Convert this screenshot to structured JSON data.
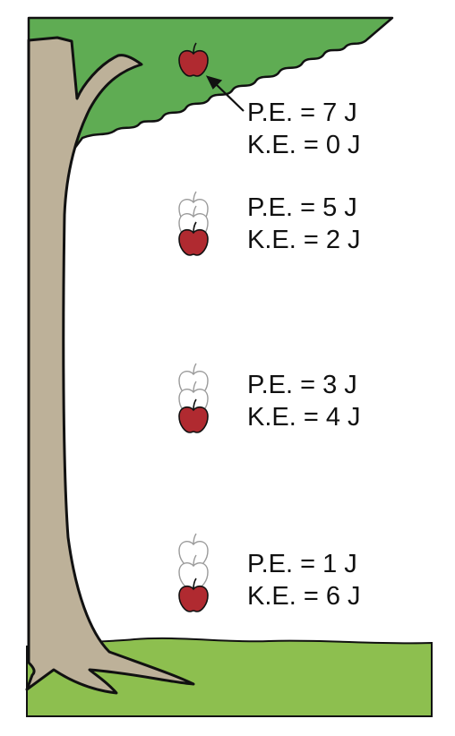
{
  "colors": {
    "foliage": "#5fac53",
    "trunk": "#bdb199",
    "grass": "#8dbf4f",
    "apple": "#b02a30",
    "outline": "#111111"
  },
  "stages": [
    {
      "pe": "P.E. = 7 J",
      "ke": "K.E. = 0 J",
      "pe_joules": 7,
      "ke_joules": 0
    },
    {
      "pe": "P.E. = 5 J",
      "ke": "K.E. = 2 J",
      "pe_joules": 5,
      "ke_joules": 2
    },
    {
      "pe": "P.E. = 3 J",
      "ke": "K.E. = 4 J",
      "pe_joules": 3,
      "ke_joules": 4
    },
    {
      "pe": "P.E. = 1 J",
      "ke": "K.E. = 6 J",
      "pe_joules": 1,
      "ke_joules": 6
    }
  ]
}
